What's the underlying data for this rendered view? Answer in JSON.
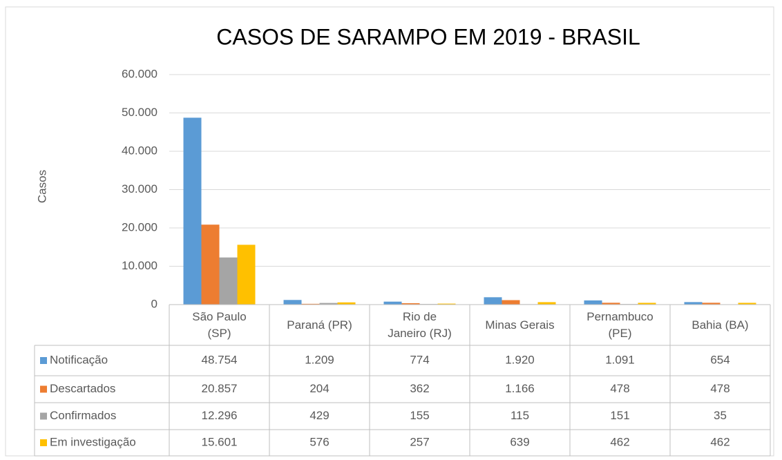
{
  "chart_data": {
    "type": "bar",
    "title": "CASOS DE SARAMPO EM 2019 - BRASIL",
    "y_label": "Casos",
    "categories": [
      "São Paulo (SP)",
      "Paraná (PR)",
      "Rio de Janeiro (RJ)",
      "Minas Gerais",
      "Pernambuco (PE)",
      "Bahia (BA)"
    ],
    "series": [
      {
        "name": "Notificação",
        "color": "#5b9bd5",
        "values": [
          48754,
          1209,
          774,
          1920,
          1091,
          654
        ],
        "value_labels": [
          "48.754",
          "1.209",
          "774",
          "1.920",
          "1.091",
          "654"
        ]
      },
      {
        "name": "Descartados",
        "color": "#ed7d31",
        "values": [
          20857,
          204,
          362,
          1166,
          478,
          478
        ],
        "value_labels": [
          "20.857",
          "204",
          "362",
          "1.166",
          "478",
          "478"
        ]
      },
      {
        "name": "Confirmados",
        "color": "#a5a5a5",
        "values": [
          12296,
          429,
          155,
          115,
          151,
          35
        ],
        "value_labels": [
          "12.296",
          "429",
          "155",
          "115",
          "151",
          "35"
        ]
      },
      {
        "name": "Em investigação",
        "color": "#ffc000",
        "values": [
          15601,
          576,
          257,
          639,
          462,
          462
        ],
        "value_labels": [
          "15.601",
          "576",
          "257",
          "639",
          "462",
          "462"
        ]
      }
    ],
    "ylim": [
      0,
      60000
    ],
    "yticks": [
      0,
      {
        "value": 10000,
        "label": "10.000"
      },
      {
        "value": 20000,
        "label": "20.000"
      },
      {
        "value": 30000,
        "label": "30.000"
      },
      {
        "value": 40000,
        "label": "40.000"
      },
      {
        "value": 50000,
        "label": "50.000"
      },
      {
        "value": 60000,
        "label": "60.000"
      }
    ],
    "grid": true,
    "data_table": true
  }
}
